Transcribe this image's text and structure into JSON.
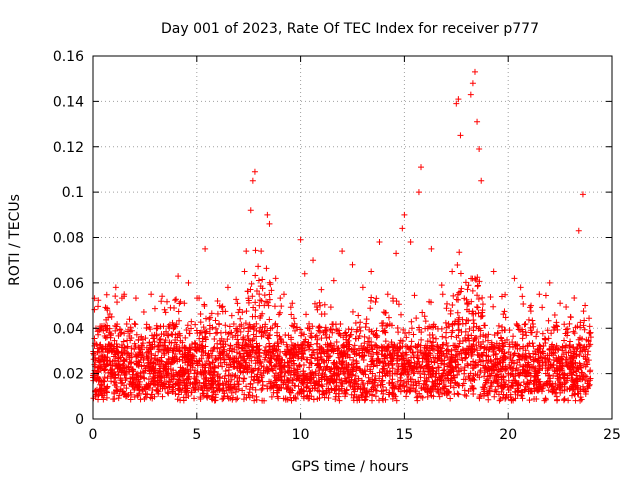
{
  "chart_data": {
    "type": "scatter",
    "title": "Day 001 of 2023, Rate Of TEC Index for receiver p777",
    "xlabel": "GPS time / hours",
    "ylabel": "ROTI / TECUs",
    "xlim": [
      0,
      25
    ],
    "ylim": [
      0,
      0.16
    ],
    "xticks": [
      0,
      5,
      10,
      15,
      20,
      25
    ],
    "xtick_labels": [
      "0",
      "5",
      "10",
      "15",
      "20",
      "25"
    ],
    "yticks": [
      0,
      0.02,
      0.04,
      0.06,
      0.08,
      0.1,
      0.12,
      0.14,
      0.16
    ],
    "ytick_labels": [
      "0",
      "0.02",
      "0.04",
      "0.06",
      "0.08",
      "0.1",
      "0.12",
      "0.14",
      "0.16"
    ],
    "grid": true,
    "marker": "+",
    "color": "#ff0000",
    "series": [
      {
        "name": "ROTI",
        "points": [
          [
            0.1,
            0.012
          ],
          [
            0.3,
            0.025
          ],
          [
            0.6,
            0.031
          ],
          [
            0.9,
            0.045
          ],
          [
            1.1,
            0.058
          ],
          [
            1.3,
            0.022
          ],
          [
            1.6,
            0.018
          ],
          [
            2.0,
            0.042
          ],
          [
            2.4,
            0.035
          ],
          [
            2.8,
            0.055
          ],
          [
            3.0,
            0.028
          ],
          [
            3.5,
            0.047
          ],
          [
            4.1,
            0.063
          ],
          [
            4.4,
            0.051
          ],
          [
            4.6,
            0.06
          ],
          [
            5.0,
            0.039
          ],
          [
            5.4,
            0.075
          ],
          [
            5.6,
            0.044
          ],
          [
            6.0,
            0.052
          ],
          [
            6.5,
            0.058
          ],
          [
            7.0,
            0.047
          ],
          [
            7.3,
            0.065
          ],
          [
            7.6,
            0.092
          ],
          [
            7.7,
            0.105
          ],
          [
            7.8,
            0.109
          ],
          [
            8.1,
            0.074
          ],
          [
            8.4,
            0.09
          ],
          [
            8.5,
            0.086
          ],
          [
            8.8,
            0.062
          ],
          [
            9.2,
            0.055
          ],
          [
            9.6,
            0.051
          ],
          [
            10.0,
            0.079
          ],
          [
            10.2,
            0.064
          ],
          [
            10.6,
            0.07
          ],
          [
            11.0,
            0.057
          ],
          [
            11.6,
            0.061
          ],
          [
            12.0,
            0.074
          ],
          [
            12.5,
            0.068
          ],
          [
            13.0,
            0.058
          ],
          [
            13.4,
            0.065
          ],
          [
            13.8,
            0.078
          ],
          [
            14.2,
            0.055
          ],
          [
            14.6,
            0.073
          ],
          [
            14.9,
            0.084
          ],
          [
            15.0,
            0.09
          ],
          [
            15.3,
            0.078
          ],
          [
            15.7,
            0.1
          ],
          [
            15.8,
            0.111
          ],
          [
            16.3,
            0.075
          ],
          [
            16.8,
            0.059
          ],
          [
            17.3,
            0.065
          ],
          [
            17.5,
            0.139
          ],
          [
            17.6,
            0.141
          ],
          [
            17.7,
            0.125
          ],
          [
            18.2,
            0.143
          ],
          [
            18.3,
            0.148
          ],
          [
            18.4,
            0.153
          ],
          [
            18.5,
            0.131
          ],
          [
            18.6,
            0.119
          ],
          [
            18.7,
            0.105
          ],
          [
            19.3,
            0.065
          ],
          [
            19.7,
            0.054
          ],
          [
            20.3,
            0.062
          ],
          [
            20.6,
            0.058
          ],
          [
            21.1,
            0.05
          ],
          [
            21.5,
            0.055
          ],
          [
            22.0,
            0.06
          ],
          [
            22.5,
            0.051
          ],
          [
            23.0,
            0.045
          ],
          [
            23.4,
            0.083
          ],
          [
            23.6,
            0.099
          ],
          [
            23.9,
            0.038
          ]
        ]
      }
    ]
  }
}
